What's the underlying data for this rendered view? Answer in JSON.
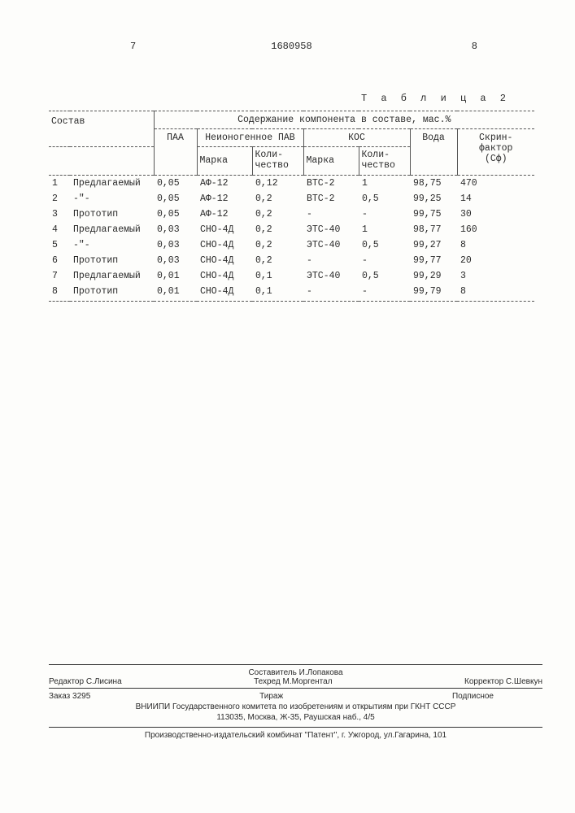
{
  "header": {
    "left_page": "7",
    "doc_number": "1680958",
    "right_page": "8"
  },
  "table": {
    "title": "Т а б л и ц а  2",
    "columns": {
      "sostav": "Состав",
      "group_header": "Содержание компонента в составе, мас.%",
      "paa": "ПАА",
      "nonionic": "Неионогенное ПАВ",
      "kos": "КОС",
      "marka": "Марка",
      "qty": "Коли-\nчество",
      "voda": "Вода",
      "screen": "Скрин-\nфактор\n(Сф)"
    },
    "rows": [
      {
        "n": "1",
        "sostav": "Предлагаемый",
        "paa": "0,05",
        "m1": "АФ-12",
        "q1": "0,12",
        "m2": "ВТС-2",
        "q2": "1",
        "voda": "98,75",
        "sf": "470"
      },
      {
        "n": "2",
        "sostav": "-\"-",
        "paa": "0,05",
        "m1": "АФ-12",
        "q1": "0,2",
        "m2": "ВТС-2",
        "q2": "0,5",
        "voda": "99,25",
        "sf": "14"
      },
      {
        "n": "3",
        "sostav": "Прототип",
        "paa": "0,05",
        "m1": "АФ-12",
        "q1": "0,2",
        "m2": "-",
        "q2": "-",
        "voda": "99,75",
        "sf": "30"
      },
      {
        "n": "4",
        "sostav": "Предлагаемый",
        "paa": "0,03",
        "m1": "СНО-4Д",
        "q1": "0,2",
        "m2": "ЭТС-40",
        "q2": "1",
        "voda": "98,77",
        "sf": "160"
      },
      {
        "n": "5",
        "sostav": "-\"-",
        "paa": "0,03",
        "m1": "СНО-4Д",
        "q1": "0,2",
        "m2": "ЭТС-40",
        "q2": "0,5",
        "voda": "99,27",
        "sf": "8"
      },
      {
        "n": "6",
        "sostav": "Прототип",
        "paa": "0,03",
        "m1": "СНО-4Д",
        "q1": "0,2",
        "m2": "-",
        "q2": "-",
        "voda": "99,77",
        "sf": "20"
      },
      {
        "n": "7",
        "sostav": "Предлагаемый",
        "paa": "0,01",
        "m1": "СНО-4Д",
        "q1": "0,1",
        "m2": "ЭТС-40",
        "q2": "0,5",
        "voda": "99,29",
        "sf": "3"
      },
      {
        "n": "8",
        "sostav": "Прототип",
        "paa": "0,01",
        "m1": "СНО-4Д",
        "q1": "0,1",
        "m2": "-",
        "q2": "-",
        "voda": "99,79",
        "sf": "8"
      }
    ]
  },
  "footer": {
    "compiler": "Составитель И.Лопакова",
    "editor": "Редактор С.Лисина",
    "tech": "Техред М.Моргентал",
    "corrector": "Корректор С.Шевкун",
    "order": "Заказ 3295",
    "tirazh": "Тираж",
    "sub": "Подписное",
    "org1": "ВНИИПИ Государственного комитета по изобретениям и открытиям при ГКНТ СССР",
    "org2": "113035, Москва, Ж-35, Раушская наб., 4/5",
    "bottom": "Производственно-издательский комбинат \"Патент\", г. Ужгород, ул.Гагарина, 101"
  }
}
